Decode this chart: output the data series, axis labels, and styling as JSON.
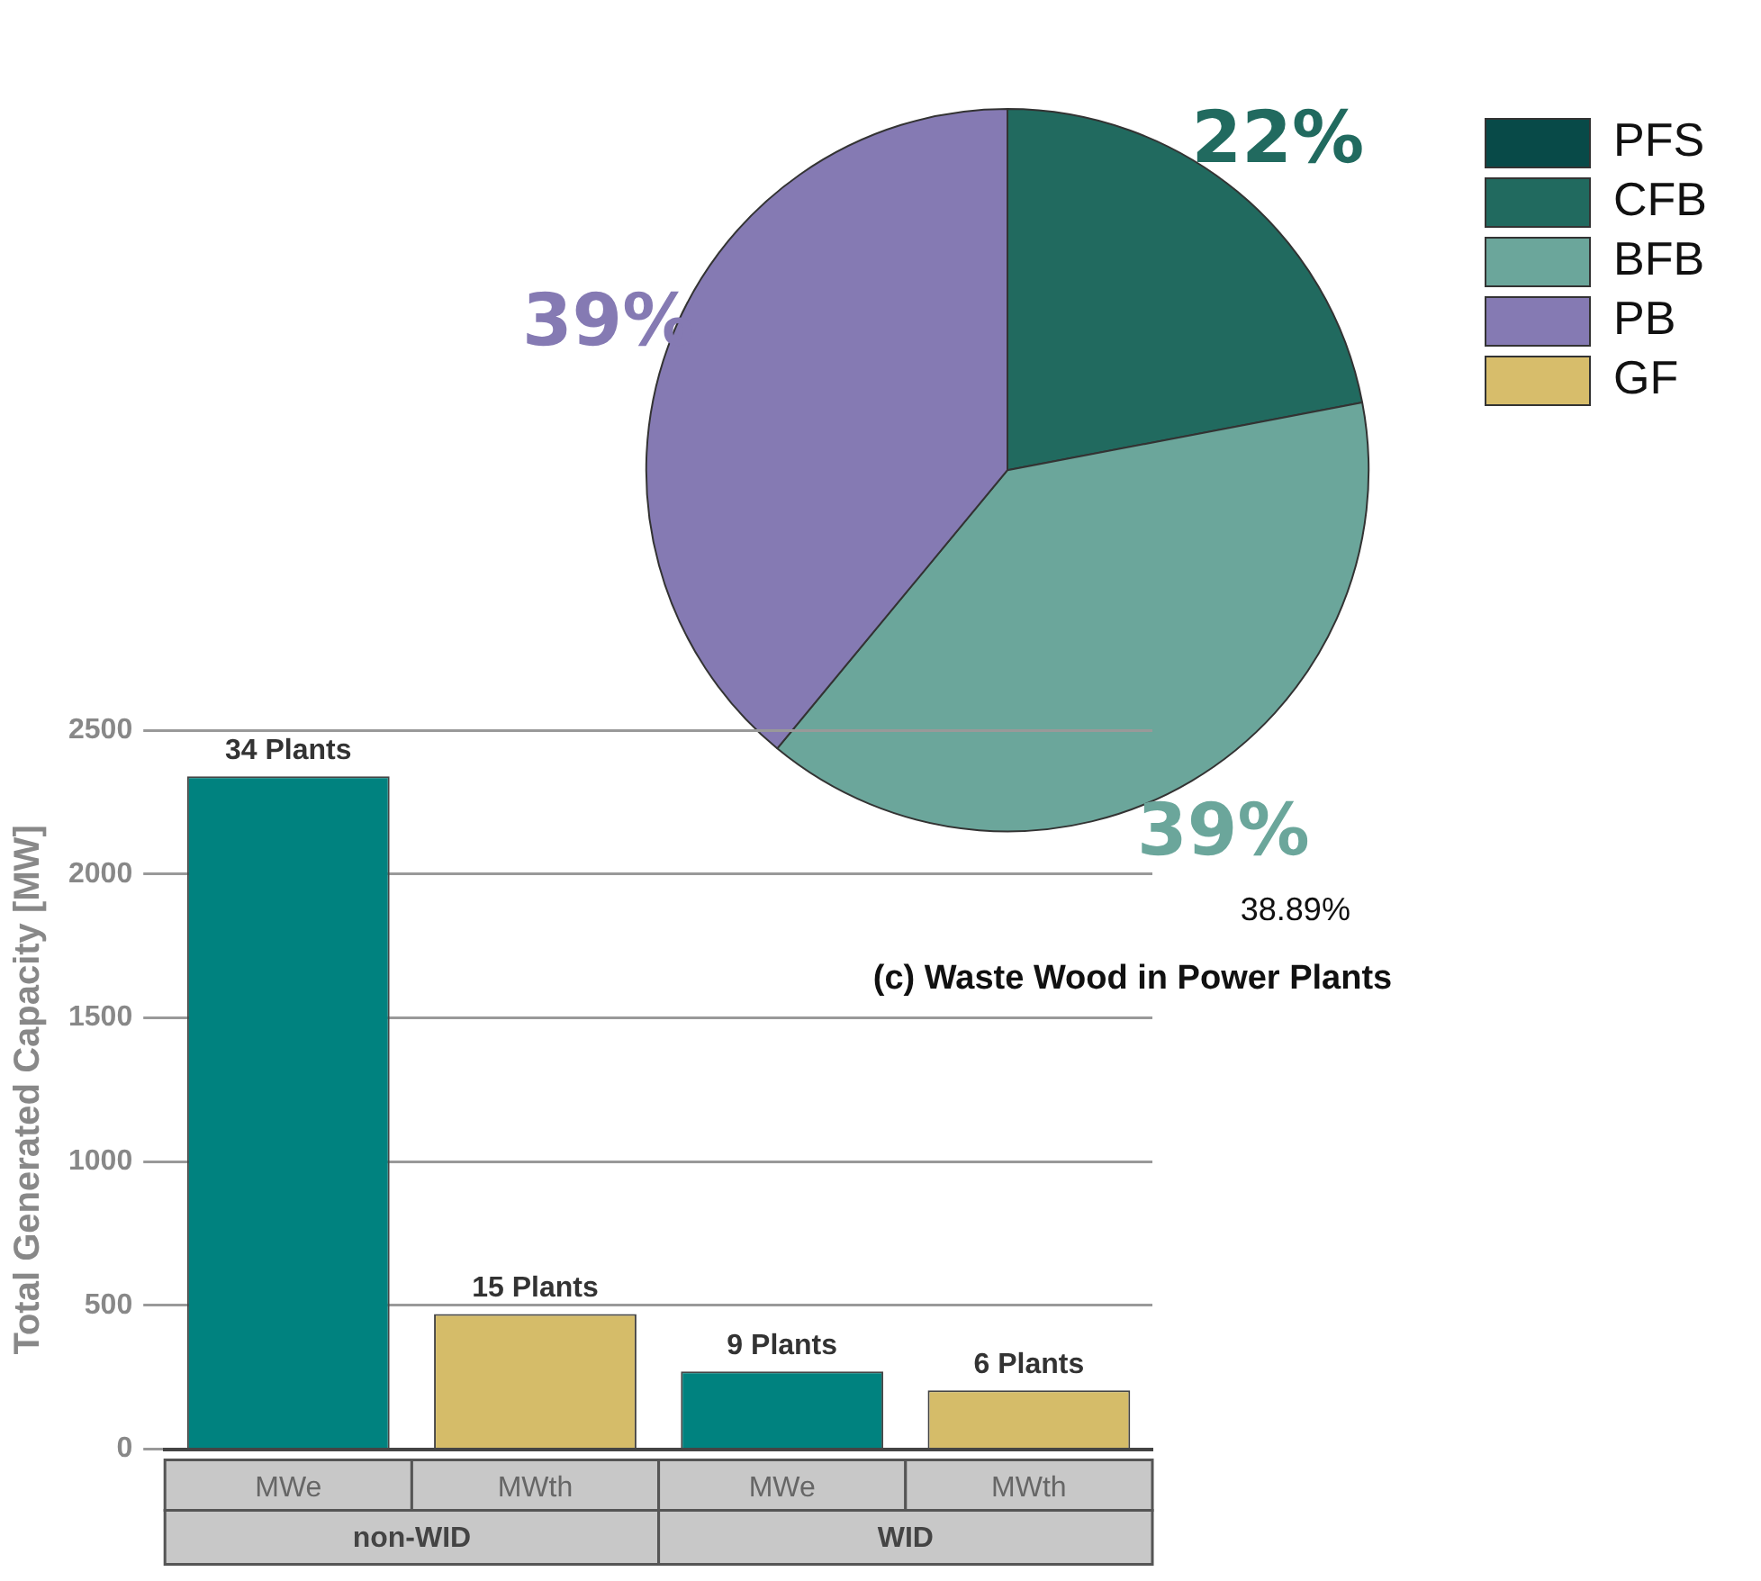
{
  "chart_data": [
    {
      "type": "pie",
      "title": "(c) Waste Wood in Power Plants",
      "categories": [
        "PFS",
        "CFB",
        "BFB",
        "PB",
        "GF"
      ],
      "values": [
        0,
        22,
        39,
        39,
        0
      ],
      "colors": [
        "#084a48",
        "#216a5f",
        "#6ba69b",
        "#857ab3",
        "#d7bd6b"
      ],
      "value_labels": [
        null,
        "22%",
        "39%",
        "39%",
        null
      ],
      "annotations": [
        "38.89%"
      ],
      "legend": "top right"
    },
    {
      "type": "bar",
      "ylabel": "Total Generated Capacity [MW]",
      "categories": [
        "MWe",
        "MWth",
        "MWe",
        "MWth"
      ],
      "values": [
        2340,
        470,
        270,
        205
      ],
      "colors": [
        "#00827f",
        "#d5bc69",
        "#00827f",
        "#d5bc69"
      ],
      "annotations": [
        "34 Plants",
        "15 Plants",
        "9 Plants",
        "6 Plants",
        "non-WID",
        "WID"
      ],
      "ylim": [
        0,
        2500
      ],
      "yticks": [
        0,
        500,
        1000,
        1500,
        2000,
        2500
      ],
      "grid": "y",
      "legend": false
    }
  ]
}
